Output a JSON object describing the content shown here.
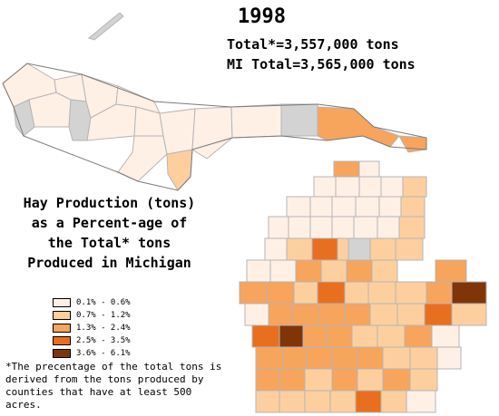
{
  "year": "1998",
  "totals": {
    "total": "Total*=3,557,000 tons",
    "mi_total": "MI Total=3,565,000 tons"
  },
  "title": "Hay Production (tons) as a Percent-age of the Total* tons Produced in Michigan",
  "legend": [
    {
      "label": "0.1% - 0.6%",
      "color": "#fff0e6"
    },
    {
      "label": "0.7% - 1.2%",
      "color": "#fdcf9f"
    },
    {
      "label": "1.3% - 2.4%",
      "color": "#f7a45d"
    },
    {
      "label": "2.5% - 3.5%",
      "color": "#e86f1f"
    },
    {
      "label": "3.6% - 6.1%",
      "color": "#7e3609"
    }
  ],
  "no_data_color": "#d3d3d3",
  "footnote": "*The precentage of the total tons is derived from the tons produced by counties that have at least 500 acres."
}
